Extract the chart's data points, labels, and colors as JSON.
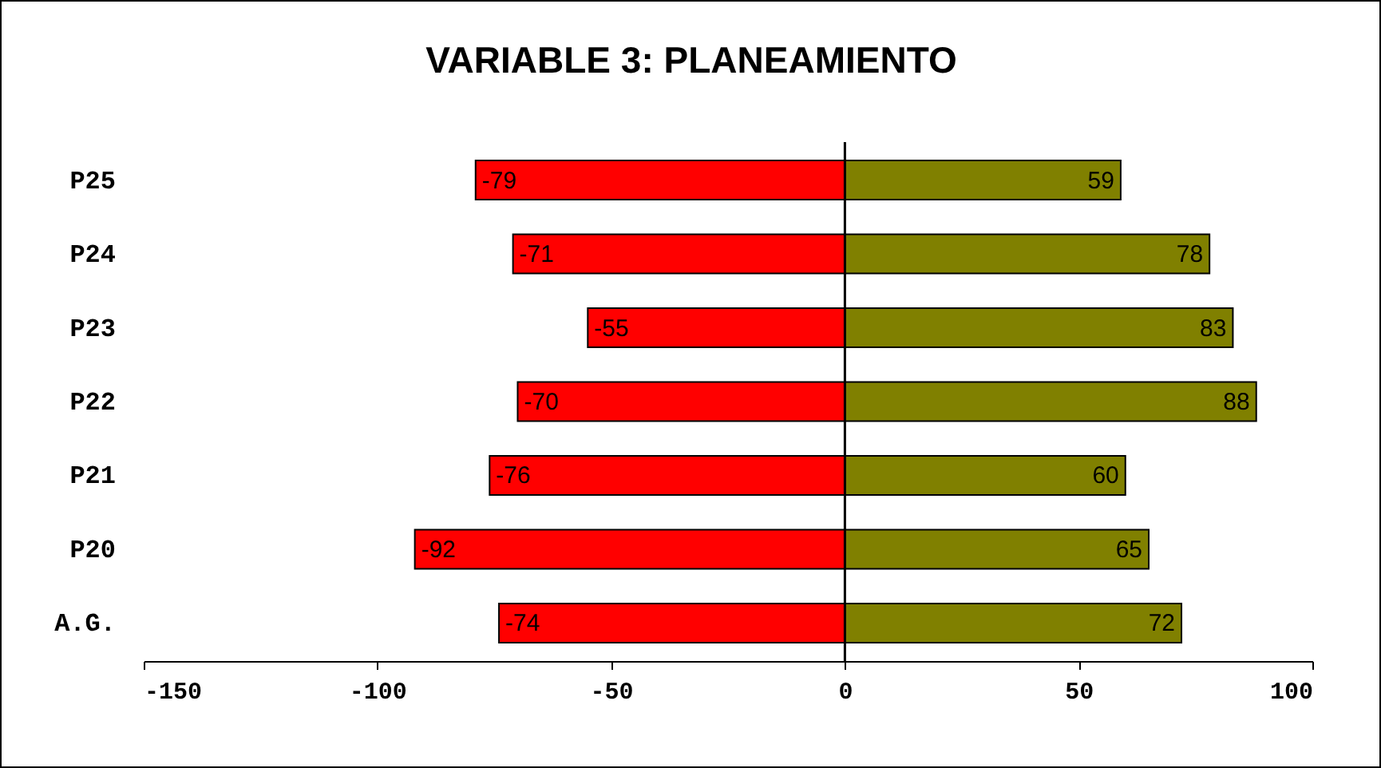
{
  "chart_data": {
    "type": "bar",
    "title": "VARIABLE 3: PLANEAMIENTO",
    "orientation": "horizontal",
    "stacked": true,
    "categories": [
      "P25",
      "P24",
      "P23",
      "P22",
      "P21",
      "P20",
      "A.G."
    ],
    "series": [
      {
        "color": "#ff0000",
        "values": [
          -79,
          -71,
          -55,
          -70,
          -76,
          -92,
          -74
        ]
      },
      {
        "color": "#808000",
        "values": [
          59,
          78,
          83,
          88,
          60,
          65,
          72
        ]
      }
    ],
    "ref_lines": [
      {
        "axis": "x",
        "value": 0,
        "color": "#000000"
      }
    ],
    "xlim": [
      -150,
      100
    ],
    "xticks": [
      -150,
      -100,
      -50,
      0,
      50,
      100
    ],
    "grid": false,
    "legend": false,
    "data_labels": true
  }
}
